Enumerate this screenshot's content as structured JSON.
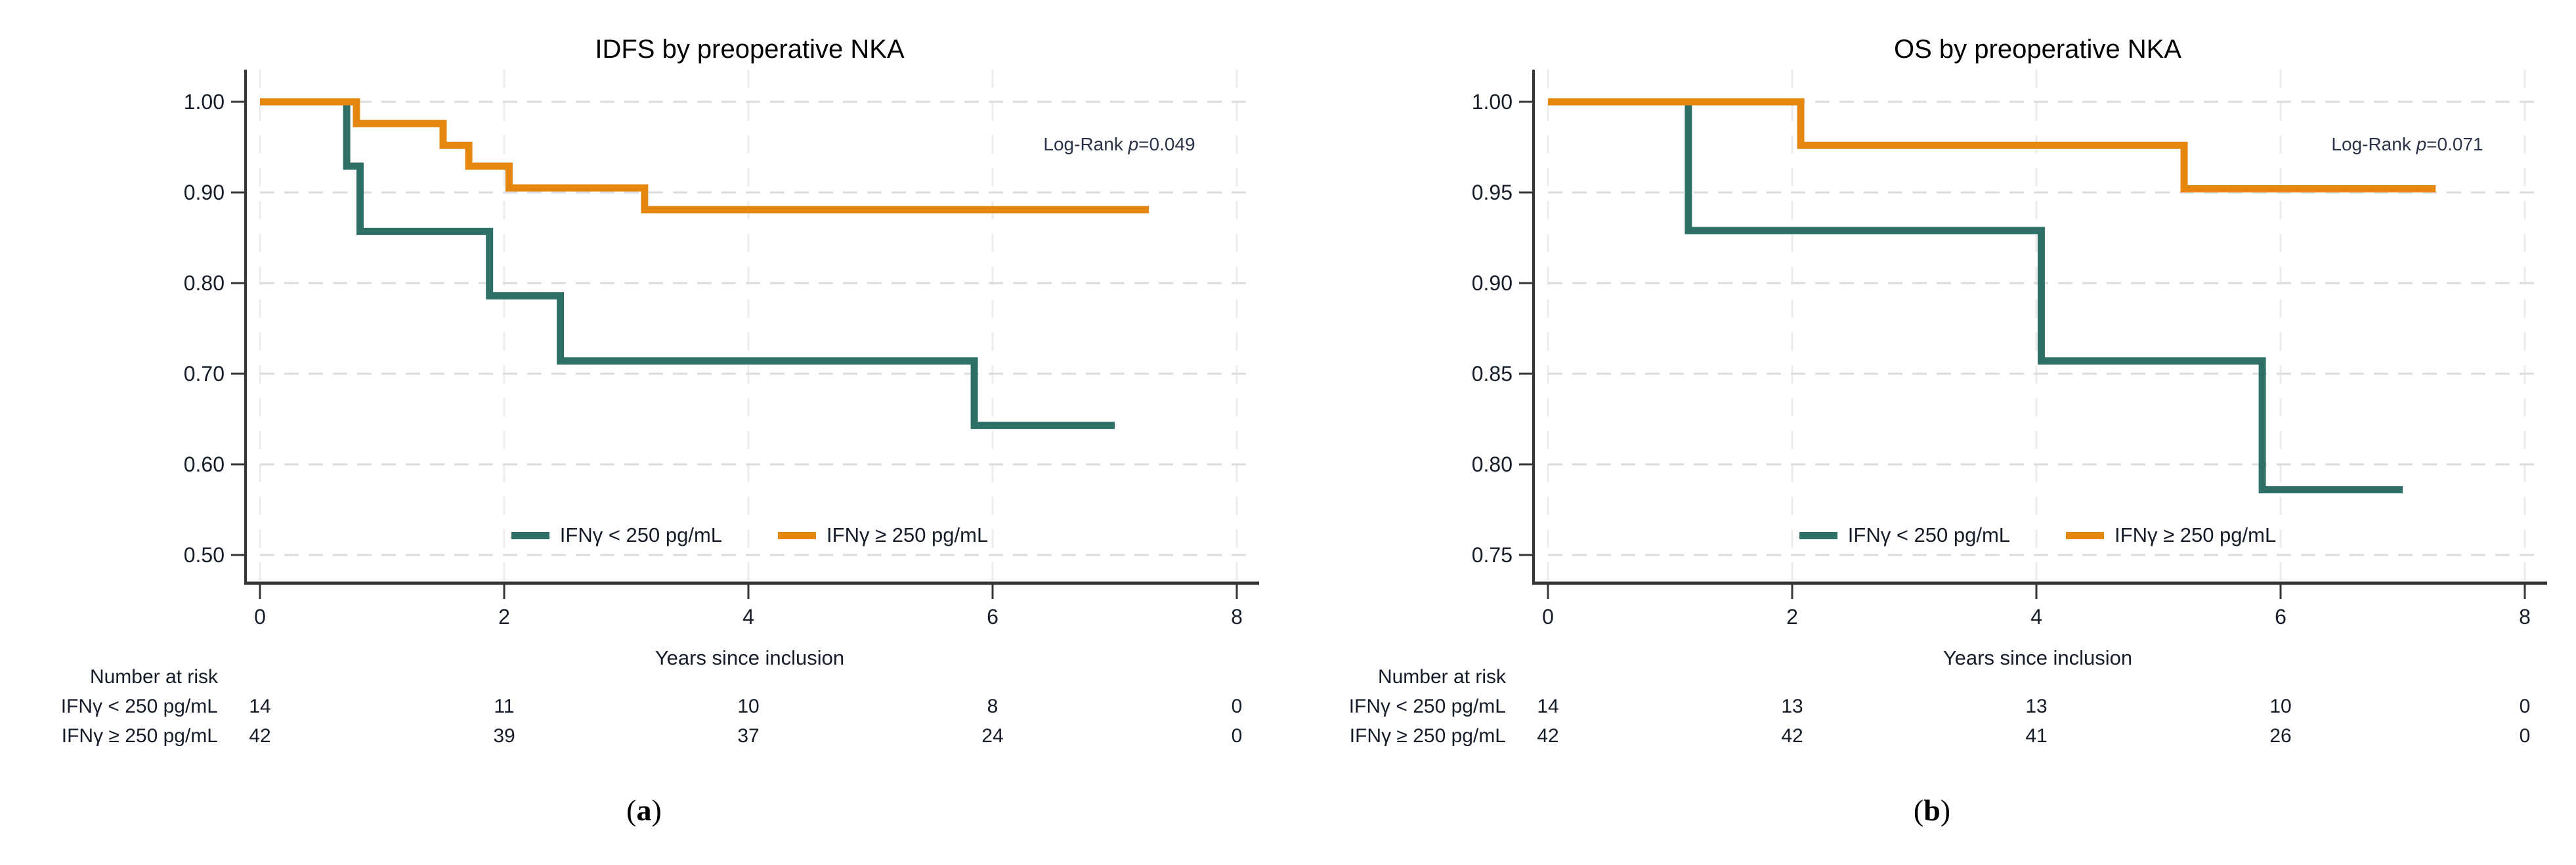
{
  "styles": {
    "teal": "#2e7067",
    "orange": "#e5860f",
    "axis_color": "#363636",
    "grid_h_color": "#dcdcdc",
    "grid_v_color": "#ececec",
    "tick_text_color": "#161d29",
    "annotation_color": "#2a3347",
    "background": "#ffffff"
  },
  "chart_data": [
    {
      "type": "line",
      "subtype": "kaplan-meier-step",
      "title": "IDFS by preoperative NKA",
      "xlabel": "Years since inclusion",
      "annotation": {
        "prefix": "Log-Rank ",
        "p": "p",
        "value": "=0.049"
      },
      "panel_letter": {
        "open": "(",
        "letter": "a",
        "close": ")"
      },
      "xlim": [
        0,
        8
      ],
      "x_ticks": [
        "0",
        "2",
        "4",
        "6",
        "8"
      ],
      "x_tick_values": [
        0,
        2,
        4,
        6,
        8
      ],
      "ylim": [
        0.5,
        1.0
      ],
      "y_ticks": [
        "1.00",
        "0.90",
        "0.80",
        "0.70",
        "0.60",
        "0.50"
      ],
      "y_tick_values": [
        1.0,
        0.9,
        0.8,
        0.7,
        0.6,
        0.5
      ],
      "grid": true,
      "legend_position": "bottom-center-inside",
      "series": [
        {
          "name": "IFNγ < 250 pg/mL",
          "color": "#2e7067",
          "steps": [
            {
              "t": 0,
              "s": 1.0
            },
            {
              "t": 0.71,
              "s": 0.929
            },
            {
              "t": 0.82,
              "s": 0.857
            },
            {
              "t": 1.88,
              "s": 0.786
            },
            {
              "t": 2.46,
              "s": 0.714
            },
            {
              "t": 5.85,
              "s": 0.643
            }
          ],
          "end_t": 7.0
        },
        {
          "name": "IFNγ ≥ 250 pg/mL",
          "color": "#e5860f",
          "steps": [
            {
              "t": 0,
              "s": 1.0
            },
            {
              "t": 0.79,
              "s": 0.976
            },
            {
              "t": 1.5,
              "s": 0.952
            },
            {
              "t": 1.71,
              "s": 0.929
            },
            {
              "t": 2.04,
              "s": 0.905
            },
            {
              "t": 3.15,
              "s": 0.881
            }
          ],
          "end_t": 7.28
        }
      ],
      "at_risk": {
        "header": "Number at risk",
        "time_points": [
          0,
          2,
          4,
          6,
          8
        ],
        "rows": [
          {
            "label": "IFNγ < 250 pg/mL",
            "values": [
              "14",
              "11",
              "10",
              "8",
              "0"
            ]
          },
          {
            "label": "IFNγ ≥ 250 pg/mL",
            "values": [
              "42",
              "39",
              "37",
              "24",
              "0"
            ]
          }
        ]
      }
    },
    {
      "type": "line",
      "subtype": "kaplan-meier-step",
      "title": "OS by preoperative NKA",
      "xlabel": "Years since inclusion",
      "annotation": {
        "prefix": "Log-Rank ",
        "p": "p",
        "value": "=0.071"
      },
      "panel_letter": {
        "open": "(",
        "letter": "b",
        "close": ")"
      },
      "xlim": [
        0,
        8
      ],
      "x_ticks": [
        "0",
        "2",
        "4",
        "6",
        "8"
      ],
      "x_tick_values": [
        0,
        2,
        4,
        6,
        8
      ],
      "ylim": [
        0.75,
        1.0
      ],
      "y_ticks": [
        "1.00",
        "0.95",
        "0.90",
        "0.85",
        "0.80",
        "0.75"
      ],
      "y_tick_values": [
        1.0,
        0.95,
        0.9,
        0.85,
        0.8,
        0.75
      ],
      "grid": true,
      "legend_position": "bottom-center-inside",
      "series": [
        {
          "name": "IFNγ < 250 pg/mL",
          "color": "#2e7067",
          "steps": [
            {
              "t": 0,
              "s": 1.0
            },
            {
              "t": 1.15,
              "s": 0.929
            },
            {
              "t": 4.04,
              "s": 0.857
            },
            {
              "t": 5.85,
              "s": 0.786
            }
          ],
          "end_t": 7.0
        },
        {
          "name": "IFNγ ≥ 250 pg/mL",
          "color": "#e5860f",
          "steps": [
            {
              "t": 0,
              "s": 1.0
            },
            {
              "t": 2.07,
              "s": 0.976
            },
            {
              "t": 5.21,
              "s": 0.952
            }
          ],
          "end_t": 7.27
        }
      ],
      "at_risk": {
        "header": "Number at risk",
        "time_points": [
          0,
          2,
          4,
          6,
          8
        ],
        "rows": [
          {
            "label": "IFNγ < 250 pg/mL",
            "values": [
              "14",
              "13",
              "13",
              "10",
              "0"
            ]
          },
          {
            "label": "IFNγ ≥ 250 pg/mL",
            "values": [
              "42",
              "42",
              "41",
              "26",
              "0"
            ]
          }
        ]
      }
    }
  ]
}
